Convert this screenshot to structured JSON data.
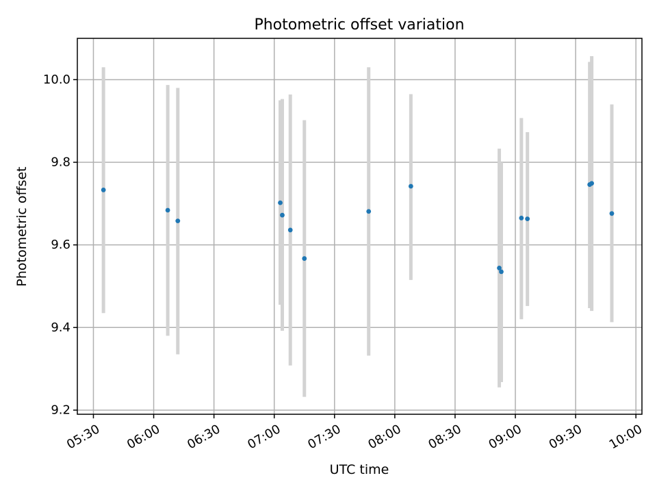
{
  "chart_data": {
    "type": "scatter",
    "title": "Photometric offset variation",
    "xlabel": "UTC time",
    "ylabel": "Photometric offset",
    "xlim": [
      "05:22",
      "10:03"
    ],
    "ylim": [
      9.19,
      10.1
    ],
    "x_ticks": [
      "05:30",
      "06:00",
      "06:30",
      "07:00",
      "07:30",
      "08:00",
      "08:30",
      "09:00",
      "09:30",
      "10:00"
    ],
    "y_ticks": [
      "9.2",
      "9.4",
      "9.6",
      "9.8",
      "10.0"
    ],
    "grid": true,
    "series": [
      {
        "points": [
          {
            "x": "05:35",
            "y": 9.733,
            "ylow": 9.435,
            "yhigh": 10.03
          },
          {
            "x": "06:07",
            "y": 9.684,
            "ylow": 9.38,
            "yhigh": 9.987
          },
          {
            "x": "06:12",
            "y": 9.658,
            "ylow": 9.335,
            "yhigh": 9.98
          },
          {
            "x": "07:03",
            "y": 9.702,
            "ylow": 9.455,
            "yhigh": 9.95
          },
          {
            "x": "07:04",
            "y": 9.672,
            "ylow": 9.392,
            "yhigh": 9.953
          },
          {
            "x": "07:08",
            "y": 9.636,
            "ylow": 9.308,
            "yhigh": 9.964
          },
          {
            "x": "07:15",
            "y": 9.567,
            "ylow": 9.232,
            "yhigh": 9.902
          },
          {
            "x": "07:47",
            "y": 9.681,
            "ylow": 9.332,
            "yhigh": 10.03
          },
          {
            "x": "08:08",
            "y": 9.742,
            "ylow": 9.515,
            "yhigh": 9.965
          },
          {
            "x": "08:52",
            "y": 9.544,
            "ylow": 9.255,
            "yhigh": 9.833
          },
          {
            "x": "08:53",
            "y": 9.535,
            "ylow": 9.268,
            "yhigh": 9.8
          },
          {
            "x": "09:03",
            "y": 9.665,
            "ylow": 9.42,
            "yhigh": 9.907
          },
          {
            "x": "09:06",
            "y": 9.663,
            "ylow": 9.452,
            "yhigh": 9.873
          },
          {
            "x": "09:37",
            "y": 9.746,
            "ylow": 9.447,
            "yhigh": 10.043
          },
          {
            "x": "09:38",
            "y": 9.749,
            "ylow": 9.44,
            "yhigh": 10.057
          },
          {
            "x": "09:48",
            "y": 9.676,
            "ylow": 9.413,
            "yhigh": 9.94
          }
        ]
      }
    ]
  }
}
